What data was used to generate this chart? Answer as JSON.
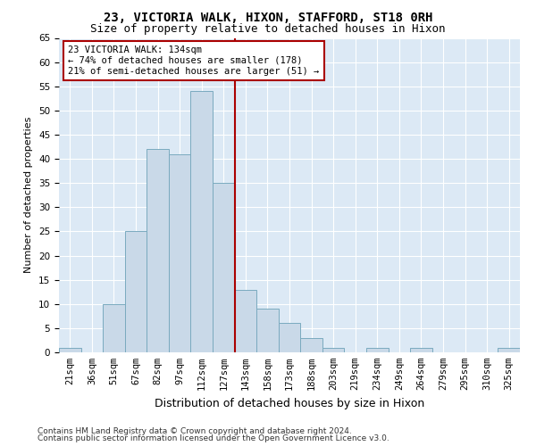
{
  "title": "23, VICTORIA WALK, HIXON, STAFFORD, ST18 0RH",
  "subtitle": "Size of property relative to detached houses in Hixon",
  "xlabel": "Distribution of detached houses by size in Hixon",
  "ylabel": "Number of detached properties",
  "categories": [
    "21sqm",
    "36sqm",
    "51sqm",
    "67sqm",
    "82sqm",
    "97sqm",
    "112sqm",
    "127sqm",
    "143sqm",
    "158sqm",
    "173sqm",
    "188sqm",
    "203sqm",
    "219sqm",
    "234sqm",
    "249sqm",
    "264sqm",
    "279sqm",
    "295sqm",
    "310sqm",
    "325sqm"
  ],
  "values": [
    1,
    0,
    10,
    25,
    42,
    41,
    54,
    35,
    13,
    9,
    6,
    3,
    1,
    0,
    1,
    0,
    1,
    0,
    0,
    0,
    1
  ],
  "bar_color": "#c9d9e8",
  "bar_edge_color": "#7aaabf",
  "vline_color": "#aa0000",
  "annotation_text": "23 VICTORIA WALK: 134sqm\n← 74% of detached houses are smaller (178)\n21% of semi-detached houses are larger (51) →",
  "annotation_box_facecolor": "#ffffff",
  "annotation_box_edgecolor": "#aa0000",
  "ylim": [
    0,
    65
  ],
  "yticks": [
    0,
    5,
    10,
    15,
    20,
    25,
    30,
    35,
    40,
    45,
    50,
    55,
    60,
    65
  ],
  "background_color": "#dce9f5",
  "footer_line1": "Contains HM Land Registry data © Crown copyright and database right 2024.",
  "footer_line2": "Contains public sector information licensed under the Open Government Licence v3.0.",
  "title_fontsize": 10,
  "subtitle_fontsize": 9,
  "xlabel_fontsize": 9,
  "ylabel_fontsize": 8,
  "tick_fontsize": 7.5,
  "annotation_fontsize": 7.5,
  "footer_fontsize": 6.5
}
